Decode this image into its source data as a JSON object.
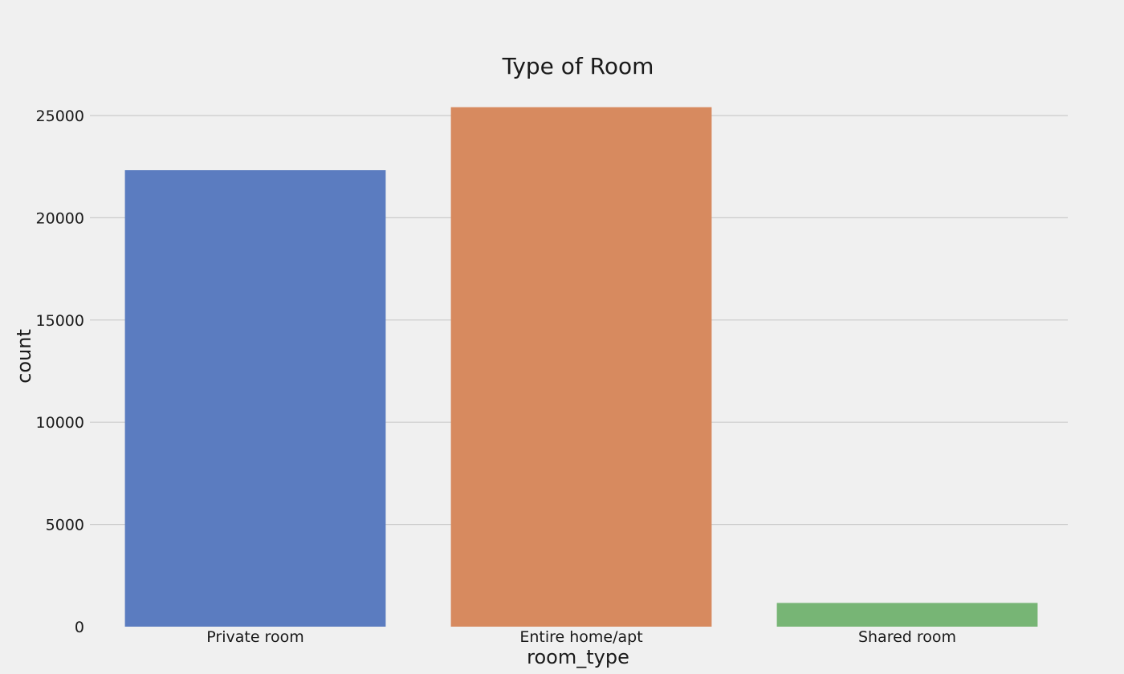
{
  "chart_data": {
    "type": "bar",
    "title": "Type of Room",
    "xlabel": "room_type",
    "ylabel": "count",
    "categories": [
      "Private room",
      "Entire home/apt",
      "Shared room"
    ],
    "values": [
      22326,
      25409,
      1160
    ],
    "colors": [
      "#5b7cc0",
      "#d78a5f",
      "#77b575"
    ],
    "ylim": [
      0,
      26500
    ],
    "yticks": [
      0,
      5000,
      10000,
      15000,
      20000,
      25000
    ],
    "ytick_labels": [
      "0",
      "5000",
      "10000",
      "15000",
      "20000",
      "25000"
    ],
    "grid": "horizontal",
    "background": "#f0f0f0"
  }
}
